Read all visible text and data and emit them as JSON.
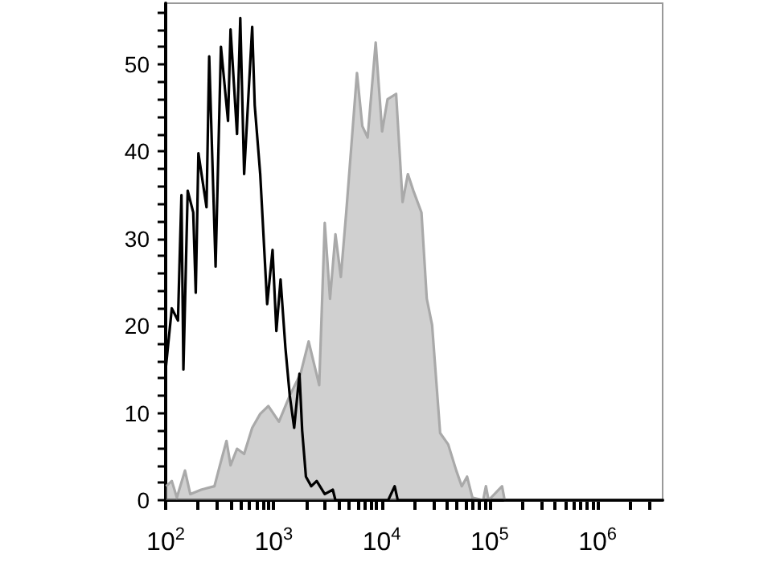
{
  "chart_data": {
    "type": "line",
    "log": "x",
    "grid": false,
    "marker": "none",
    "line_style": "solid",
    "xlim": [
      100,
      4000000
    ],
    "ylim": [
      0,
      57
    ],
    "xticks": [
      {
        "value": 100,
        "label": "10$^{2}$"
      },
      {
        "value": 200,
        "label": null
      },
      {
        "value": 300,
        "label": null
      },
      {
        "value": 400,
        "label": null
      },
      {
        "value": 500,
        "label": null
      },
      {
        "value": 600,
        "label": null
      },
      {
        "value": 700,
        "label": null
      },
      {
        "value": 800,
        "label": null
      },
      {
        "value": 900,
        "label": null
      },
      {
        "value": 1000,
        "label": "10$^{3}$"
      },
      {
        "value": 2000,
        "label": null
      },
      {
        "value": 3000,
        "label": null
      },
      {
        "value": 4000,
        "label": null
      },
      {
        "value": 5000,
        "label": null
      },
      {
        "value": 6000,
        "label": null
      },
      {
        "value": 7000,
        "label": null
      },
      {
        "value": 8000,
        "label": null
      },
      {
        "value": 9000,
        "label": null
      },
      {
        "value": 10000,
        "label": "10$^{4}$"
      },
      {
        "value": 20000,
        "label": null
      },
      {
        "value": 30000,
        "label": null
      },
      {
        "value": 40000,
        "label": null
      },
      {
        "value": 50000,
        "label": null
      },
      {
        "value": 60000,
        "label": null
      },
      {
        "value": 70000,
        "label": null
      },
      {
        "value": 80000,
        "label": null
      },
      {
        "value": 90000,
        "label": null
      },
      {
        "value": 100000,
        "label": "10$^{5}$"
      },
      {
        "value": 200000,
        "label": null
      },
      {
        "value": 300000,
        "label": null
      },
      {
        "value": 400000,
        "label": null
      },
      {
        "value": 500000,
        "label": null
      },
      {
        "value": 600000,
        "label": null
      },
      {
        "value": 700000,
        "label": null
      },
      {
        "value": 800000,
        "label": null
      },
      {
        "value": 900000,
        "label": null
      },
      {
        "value": 1000000,
        "label": "10$^{6}$"
      },
      {
        "value": 2000000,
        "label": null
      },
      {
        "value": 3000000,
        "label": null
      }
    ],
    "yticks": [
      0,
      {
        "value": 2,
        "label": null
      },
      {
        "value": 4,
        "label": null
      },
      {
        "value": 6,
        "label": null
      },
      {
        "value": 8,
        "label": null
      },
      10,
      {
        "value": 12,
        "label": null
      },
      {
        "value": 14,
        "label": null
      },
      {
        "value": 16,
        "label": null
      },
      {
        "value": 18,
        "label": null
      },
      20,
      {
        "value": 22,
        "label": null
      },
      {
        "value": 24,
        "label": null
      },
      {
        "value": 26,
        "label": null
      },
      {
        "value": 28,
        "label": null
      },
      30,
      {
        "value": 32,
        "label": null
      },
      {
        "value": 34,
        "label": null
      },
      {
        "value": 36,
        "label": null
      },
      {
        "value": 38,
        "label": null
      },
      40,
      {
        "value": 42,
        "label": null
      },
      {
        "value": 44,
        "label": null
      },
      {
        "value": 46,
        "label": null
      },
      {
        "value": 48,
        "label": null
      },
      50,
      {
        "value": 52,
        "label": null
      },
      {
        "value": 54,
        "label": null
      },
      {
        "value": 56,
        "label": null
      }
    ],
    "series": [
      {
        "type": "area",
        "color": "#a9a9a9",
        "x": [
          101,
          114,
          127,
          151,
          169,
          213,
          283,
          318,
          366,
          399,
          458,
          533,
          633,
          751,
          893,
          1119,
          1410,
          1774,
          2109,
          2642,
          2973,
          3327,
          3735,
          4190,
          4700,
          5910,
          6625,
          7420,
          8810,
          10100,
          11350,
          13620,
          15630,
          17500,
          19660,
          23380,
          26190,
          29330,
          34820,
          41330,
          49100,
          55200,
          61800,
          69200,
          87100,
          92400,
          97800,
          130300,
          137800,
          4000000
        ],
        "values": [
          1.6,
          2.2,
          0.3,
          3.4,
          0.7,
          1.2,
          1.6,
          4,
          6.8,
          4,
          5.9,
          5.3,
          8.3,
          9.9,
          10.8,
          9,
          12,
          14.5,
          18.2,
          13.2,
          31.8,
          23.1,
          30.5,
          25.6,
          33,
          49,
          42.9,
          41.6,
          52.5,
          42.3,
          46,
          46.6,
          34.2,
          37.4,
          35.5,
          33,
          23.1,
          20.1,
          7.7,
          6.4,
          3.4,
          1.6,
          2.7,
          0.3,
          0,
          1.6,
          0,
          1.6,
          0,
          0
        ]
      },
      {
        "color": "#000000",
        "x": [
          100,
          114,
          130,
          140,
          146,
          160,
          180,
          190,
          201,
          239,
          253,
          290,
          325,
          378,
          399,
          458,
          491,
          533,
          633,
          668,
          751,
          871,
          977,
          1060,
          1159,
          1285,
          1410,
          1549,
          1734,
          1837,
          1990,
          2230,
          2504,
          2973,
          3530,
          3735,
          11500,
          13200,
          14100,
          4000000
        ],
        "values": [
          15,
          22,
          20.6,
          35,
          15,
          35.5,
          33,
          23.8,
          39.8,
          33.6,
          50.9,
          26.8,
          52,
          43.5,
          54,
          42,
          55.3,
          37.4,
          54.3,
          45.3,
          37.4,
          22.5,
          28.7,
          19.4,
          25.3,
          17.5,
          12,
          8.3,
          14.5,
          8,
          2.7,
          1.6,
          2.2,
          0.7,
          1.2,
          0,
          0,
          1.6,
          0,
          0
        ]
      }
    ]
  }
}
